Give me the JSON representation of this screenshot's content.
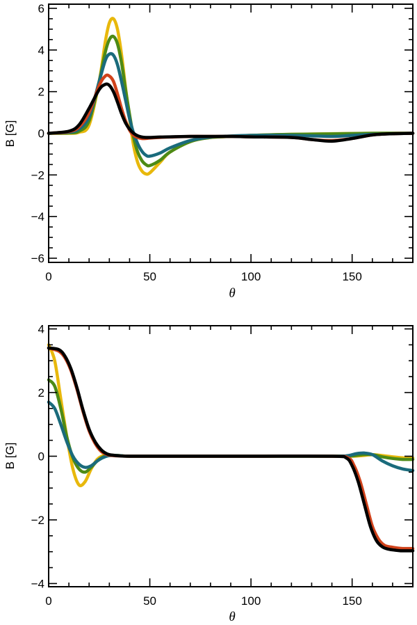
{
  "chart_data": [
    {
      "type": "line",
      "xlabel": "θ",
      "ylabel": "B [G]",
      "xlim": [
        0,
        180
      ],
      "ylim": [
        -6.2,
        6.2
      ],
      "xticks": [
        0,
        50,
        100,
        150
      ],
      "xtick_labels": [
        "0",
        "50",
        "100",
        "150"
      ],
      "yticks": [
        -6,
        -4,
        -2,
        0,
        2,
        4,
        6
      ],
      "ytick_labels": [
        "−6",
        "−4",
        "−2",
        "0",
        "2",
        "4",
        "6"
      ],
      "grid": false,
      "series": [
        {
          "name": "yellow",
          "color": "#e8b80c",
          "x": [
            0,
            10,
            15,
            20,
            25,
            28,
            30,
            32,
            34,
            36,
            38,
            40,
            42,
            44,
            46,
            48,
            50,
            55,
            60,
            70,
            80,
            90,
            100,
            120,
            140,
            160,
            180
          ],
          "y": [
            0,
            0,
            0.05,
            0.4,
            2.5,
            4.4,
            5.3,
            5.5,
            5.0,
            3.8,
            2.2,
            0.7,
            -0.6,
            -1.4,
            -1.8,
            -1.95,
            -1.9,
            -1.4,
            -0.9,
            -0.4,
            -0.2,
            -0.15,
            -0.1,
            -0.05,
            -0.02,
            0,
            0
          ]
        },
        {
          "name": "green",
          "color": "#4d8a16",
          "x": [
            0,
            10,
            15,
            20,
            25,
            28,
            30,
            32,
            34,
            36,
            38,
            40,
            42,
            44,
            46,
            48,
            50,
            55,
            60,
            70,
            80,
            90,
            100,
            120,
            140,
            160,
            180
          ],
          "y": [
            0,
            0.02,
            0.1,
            0.6,
            2.5,
            3.9,
            4.5,
            4.65,
            4.3,
            3.4,
            2.1,
            0.9,
            -0.2,
            -0.9,
            -1.3,
            -1.5,
            -1.55,
            -1.3,
            -0.9,
            -0.4,
            -0.2,
            -0.15,
            -0.1,
            -0.05,
            -0.03,
            0,
            0
          ]
        },
        {
          "name": "teal",
          "color": "#1a6b7c",
          "x": [
            0,
            10,
            15,
            20,
            25,
            28,
            30,
            32,
            34,
            36,
            38,
            40,
            42,
            44,
            46,
            48,
            50,
            55,
            60,
            70,
            80,
            90,
            100,
            120,
            140,
            150,
            160,
            170,
            180
          ],
          "y": [
            0,
            0.05,
            0.2,
            0.8,
            2.5,
            3.5,
            3.8,
            3.75,
            3.3,
            2.5,
            1.6,
            0.7,
            0.0,
            -0.5,
            -0.85,
            -1.05,
            -1.1,
            -0.95,
            -0.7,
            -0.35,
            -0.18,
            -0.13,
            -0.1,
            -0.1,
            -0.15,
            -0.1,
            -0.05,
            -0.02,
            0
          ]
        },
        {
          "name": "red",
          "color": "#d0421b",
          "x": [
            0,
            10,
            15,
            20,
            25,
            28,
            30,
            32,
            34,
            36,
            38,
            40,
            42,
            44,
            46,
            48,
            50,
            55,
            60,
            70,
            80,
            90,
            100,
            120,
            130,
            140,
            150,
            160,
            170,
            180
          ],
          "y": [
            0,
            0.08,
            0.3,
            1.0,
            2.3,
            2.75,
            2.75,
            2.5,
            1.9,
            1.2,
            0.6,
            0.15,
            -0.1,
            -0.2,
            -0.25,
            -0.25,
            -0.23,
            -0.2,
            -0.18,
            -0.15,
            -0.15,
            -0.15,
            -0.17,
            -0.2,
            -0.3,
            -0.35,
            -0.25,
            -0.08,
            -0.02,
            0
          ]
        },
        {
          "name": "black",
          "color": "#000000",
          "x": [
            0,
            10,
            15,
            20,
            25,
            28,
            30,
            32,
            34,
            36,
            38,
            40,
            42,
            44,
            46,
            48,
            50,
            55,
            60,
            70,
            80,
            90,
            100,
            120,
            130,
            140,
            150,
            160,
            170,
            180
          ],
          "y": [
            0,
            0.1,
            0.4,
            1.2,
            2.1,
            2.35,
            2.3,
            2.0,
            1.5,
            0.95,
            0.5,
            0.2,
            0.0,
            -0.12,
            -0.18,
            -0.2,
            -0.2,
            -0.18,
            -0.17,
            -0.15,
            -0.15,
            -0.15,
            -0.17,
            -0.2,
            -0.3,
            -0.38,
            -0.25,
            -0.08,
            -0.02,
            0
          ]
        }
      ]
    },
    {
      "type": "line",
      "xlabel": "θ",
      "ylabel": "B [G]",
      "xlim": [
        0,
        180
      ],
      "ylim": [
        -4.1,
        4.1
      ],
      "xticks": [
        0,
        50,
        100,
        150
      ],
      "xtick_labels": [
        "0",
        "50",
        "100",
        "150"
      ],
      "yticks": [
        -4,
        -2,
        0,
        2,
        4
      ],
      "ytick_labels": [
        "−4",
        "−2",
        "0",
        "2",
        "4"
      ],
      "grid": false,
      "series": [
        {
          "name": "yellow",
          "color": "#e8b80c",
          "x": [
            0,
            3,
            6,
            9,
            12,
            15,
            18,
            21,
            24,
            27,
            30,
            35,
            40,
            60,
            100,
            140,
            150,
            155,
            160,
            165,
            170,
            175,
            180
          ],
          "y": [
            3.5,
            3.0,
            1.8,
            0.6,
            -0.4,
            -0.9,
            -0.8,
            -0.4,
            -0.1,
            0.02,
            0.03,
            0.02,
            0,
            0,
            0,
            0,
            0,
            0.02,
            0.05,
            0.02,
            -0.02,
            -0.05,
            -0.05
          ]
        },
        {
          "name": "green",
          "color": "#4d8a16",
          "x": [
            0,
            3,
            6,
            9,
            12,
            15,
            18,
            21,
            24,
            27,
            30,
            35,
            40,
            60,
            100,
            140,
            150,
            155,
            160,
            165,
            170,
            175,
            180
          ],
          "y": [
            2.4,
            2.2,
            1.5,
            0.6,
            -0.05,
            -0.4,
            -0.5,
            -0.35,
            -0.15,
            -0.02,
            0.03,
            0.02,
            0,
            0,
            0,
            0,
            0.01,
            0.05,
            0.05,
            -0.02,
            -0.07,
            -0.1,
            -0.1
          ]
        },
        {
          "name": "teal",
          "color": "#1a6b7c",
          "x": [
            0,
            3,
            6,
            9,
            12,
            15,
            18,
            21,
            24,
            27,
            30,
            35,
            40,
            60,
            100,
            140,
            148,
            152,
            156,
            160,
            165,
            170,
            175,
            180
          ],
          "y": [
            1.7,
            1.5,
            1.0,
            0.45,
            0.0,
            -0.25,
            -0.35,
            -0.3,
            -0.15,
            -0.04,
            0.02,
            0.02,
            0,
            0,
            0,
            0,
            0.02,
            0.08,
            0.1,
            0.05,
            -0.15,
            -0.3,
            -0.4,
            -0.45
          ]
        },
        {
          "name": "red",
          "color": "#d0421b",
          "x": [
            0,
            5,
            8,
            11,
            14,
            17,
            20,
            23,
            26,
            29,
            32,
            35,
            40,
            60,
            100,
            140,
            148,
            151,
            154,
            157,
            160,
            163,
            166,
            169,
            172,
            175,
            180
          ],
          "y": [
            3.4,
            3.3,
            3.1,
            2.7,
            2.1,
            1.4,
            0.8,
            0.4,
            0.15,
            0.05,
            0.02,
            0.01,
            0,
            0,
            0,
            0,
            -0.05,
            -0.3,
            -0.8,
            -1.5,
            -2.2,
            -2.6,
            -2.8,
            -2.85,
            -2.88,
            -2.9,
            -2.9
          ]
        },
        {
          "name": "black",
          "color": "#000000",
          "x": [
            0,
            5,
            8,
            11,
            14,
            17,
            20,
            23,
            26,
            29,
            32,
            35,
            40,
            60,
            100,
            140,
            147,
            150,
            153,
            156,
            159,
            162,
            165,
            168,
            171,
            174,
            180
          ],
          "y": [
            3.4,
            3.35,
            3.15,
            2.75,
            2.15,
            1.45,
            0.85,
            0.45,
            0.2,
            0.07,
            0.03,
            0.01,
            0,
            0,
            0,
            0,
            -0.05,
            -0.3,
            -0.8,
            -1.5,
            -2.2,
            -2.65,
            -2.85,
            -2.92,
            -2.95,
            -2.97,
            -2.97
          ]
        }
      ]
    }
  ]
}
